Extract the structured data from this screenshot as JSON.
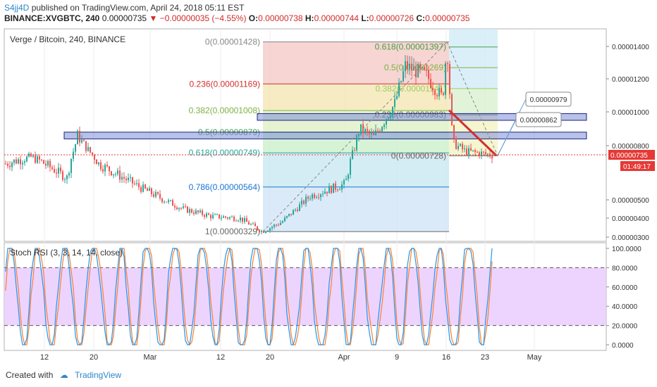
{
  "header": {
    "user": "S4jj4D",
    "published_text": "published on TradingView.com, April 24, 2018 05:11 EST",
    "symbol_interval": "BINANCE:XVGBTC, 240",
    "last": "0.00000735",
    "change": "−0.00000035 (−4.55%)",
    "o_label": "O:",
    "o": "0.00000738",
    "h_label": "H:",
    "h": "0.00000744",
    "l_label": "L:",
    "l": "0.00000726",
    "c_label": "C:",
    "c": "0.00000735"
  },
  "footer": {
    "created_with": "Created with",
    "brand": "TradingView"
  },
  "colors": {
    "up": "#26a69a",
    "down": "#ef5350",
    "price_line": "#e53935",
    "stoch_k": "#2196f3",
    "stoch_d": "#ff7f2a",
    "zone_fill": "#7e8ed6",
    "stoch_band": "#e8c9ff"
  },
  "chart_data": [
    {
      "type": "candlestick",
      "title": "Verge / Bitcoin, 240, BINANCE",
      "ylim": [
        2.8e-06,
        1.46e-05
      ],
      "y_ticks": [
        "0.00001400",
        "0.00001200",
        "0.00001000",
        "0.00000800",
        "0.00000500",
        "0.00000400",
        "0.00000300"
      ],
      "y_tick_values": [
        1.4e-05,
        1.2e-05,
        1e-05,
        8e-06,
        5e-06,
        4e-06,
        3e-06
      ],
      "x_ticks": [
        "12",
        "20",
        "Mar",
        "12",
        "20",
        "Apr",
        "9",
        "16",
        "23",
        "May"
      ],
      "current_price_label": "0.00000735",
      "countdown_label": "01:49:17",
      "fib_left": [
        {
          "label": "0(0.00001428)",
          "value": 1.428e-05
        },
        {
          "label": "0.236(0.00001169)",
          "value": 1.169e-05
        },
        {
          "label": "0.382(0.00001008)",
          "value": 1.008e-05
        },
        {
          "label": "0.5(0.00000879)",
          "value": 8.79e-06
        },
        {
          "label": "0.618(0.00000749)",
          "value": 7.49e-06
        },
        {
          "label": "0.786(0.00000564)",
          "value": 5.64e-06
        },
        {
          "label": "1(0.00000329)",
          "value": 3.29e-06
        }
      ],
      "fib_right": [
        {
          "label": "0.618(0.00001397)",
          "value": 1.397e-05
        },
        {
          "label": "0.5(0.00001269)",
          "value": 1.269e-05
        },
        {
          "label": "0.382(0.00001141)",
          "value": 1.141e-05
        },
        {
          "label": "0.236(0.00000983)",
          "value": 9.83e-06
        },
        {
          "label": "0(0.00000728)",
          "value": 7.28e-06
        }
      ],
      "callouts": [
        "0.00000979",
        "0.00000862"
      ],
      "zones": [
        {
          "low": 9.5e-06,
          "high": 9.9e-06
        },
        {
          "low": 8.4e-06,
          "high": 8.8e-06
        }
      ]
    },
    {
      "type": "line",
      "title": "Stoch RSI (3, 3, 14, 14, close)",
      "ylim": [
        0,
        100
      ],
      "y_ticks": [
        "100.0000",
        "80.0000",
        "60.0000",
        "40.0000",
        "20.0000",
        "0.0000"
      ],
      "y_tick_values": [
        100,
        80,
        60,
        40,
        20,
        0
      ],
      "bands": [
        20,
        80
      ]
    }
  ]
}
